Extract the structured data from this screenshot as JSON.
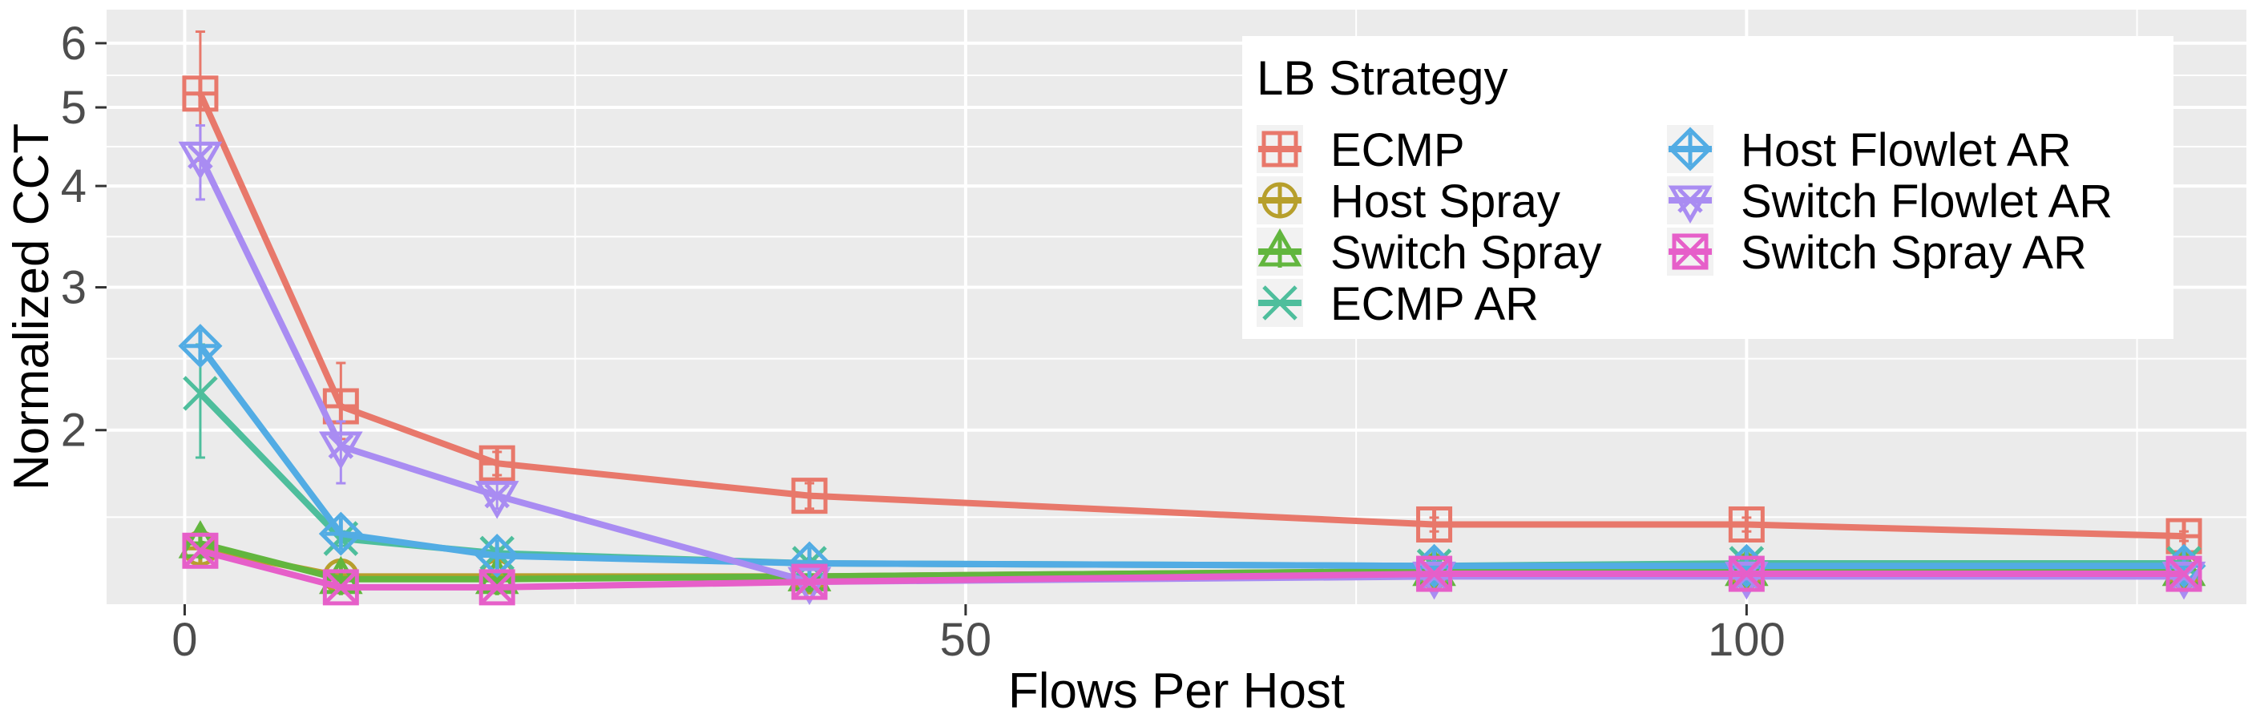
{
  "chart_data": {
    "type": "line",
    "xlabel": "Flows Per Host",
    "ylabel": "Normalized CCT",
    "y_scale": "log",
    "xlim": [
      -5,
      132
    ],
    "ylim": [
      1.22,
      6.6
    ],
    "x_ticks": [
      0,
      50,
      100
    ],
    "y_ticks": [
      2,
      3,
      4,
      5,
      6
    ],
    "grid": true,
    "legend": {
      "title": "LB Strategy",
      "placement": "top-right",
      "columns": 2
    },
    "x": [
      1,
      10,
      20,
      40,
      80,
      100,
      128
    ],
    "series": [
      {
        "name": "ECMP",
        "color": "#E8786B",
        "marker": "square-plus",
        "values": [
          5.2,
          2.14,
          1.82,
          1.66,
          1.53,
          1.53,
          1.48
        ],
        "err_low": [
          4.3,
          1.95,
          1.76,
          1.6,
          1.5,
          1.5,
          1.46
        ],
        "err_high": [
          6.2,
          2.42,
          1.88,
          1.72,
          1.56,
          1.56,
          1.5
        ]
      },
      {
        "name": "Host Spray",
        "color": "#B79F2C",
        "marker": "circle-plus",
        "values": [
          1.43,
          1.32,
          1.32,
          1.32,
          1.34,
          1.34,
          1.34
        ]
      },
      {
        "name": "Switch Spray",
        "color": "#62B63E",
        "marker": "triangle-plus",
        "values": [
          1.45,
          1.31,
          1.31,
          1.32,
          1.34,
          1.34,
          1.34
        ]
      },
      {
        "name": "ECMP AR",
        "color": "#4EBE9C",
        "marker": "cross",
        "values": [
          2.22,
          1.47,
          1.41,
          1.37,
          1.36,
          1.37,
          1.37
        ],
        "err_low": [
          1.85,
          1.44,
          1.39,
          1.36,
          1.35,
          1.36,
          1.36
        ],
        "err_high": [
          2.55,
          1.5,
          1.43,
          1.38,
          1.37,
          1.38,
          1.38
        ]
      },
      {
        "name": "Host Flowlet AR",
        "color": "#52ACE4",
        "marker": "diamond-plus",
        "values": [
          2.54,
          1.49,
          1.4,
          1.37,
          1.36,
          1.36,
          1.36
        ]
      },
      {
        "name": "Switch Flowlet AR",
        "color": "#A98CF2",
        "marker": "triangle-down-cross",
        "values": [
          4.35,
          1.91,
          1.66,
          1.3,
          1.32,
          1.32,
          1.32
        ],
        "err_low": [
          3.85,
          1.72,
          1.6,
          1.29,
          1.31,
          1.31,
          1.31
        ],
        "err_high": [
          4.75,
          2.05,
          1.72,
          1.31,
          1.33,
          1.33,
          1.33
        ]
      },
      {
        "name": "Switch Spray AR",
        "color": "#E65FC9",
        "marker": "square-cross",
        "values": [
          1.42,
          1.28,
          1.28,
          1.3,
          1.33,
          1.33,
          1.33
        ]
      }
    ]
  }
}
